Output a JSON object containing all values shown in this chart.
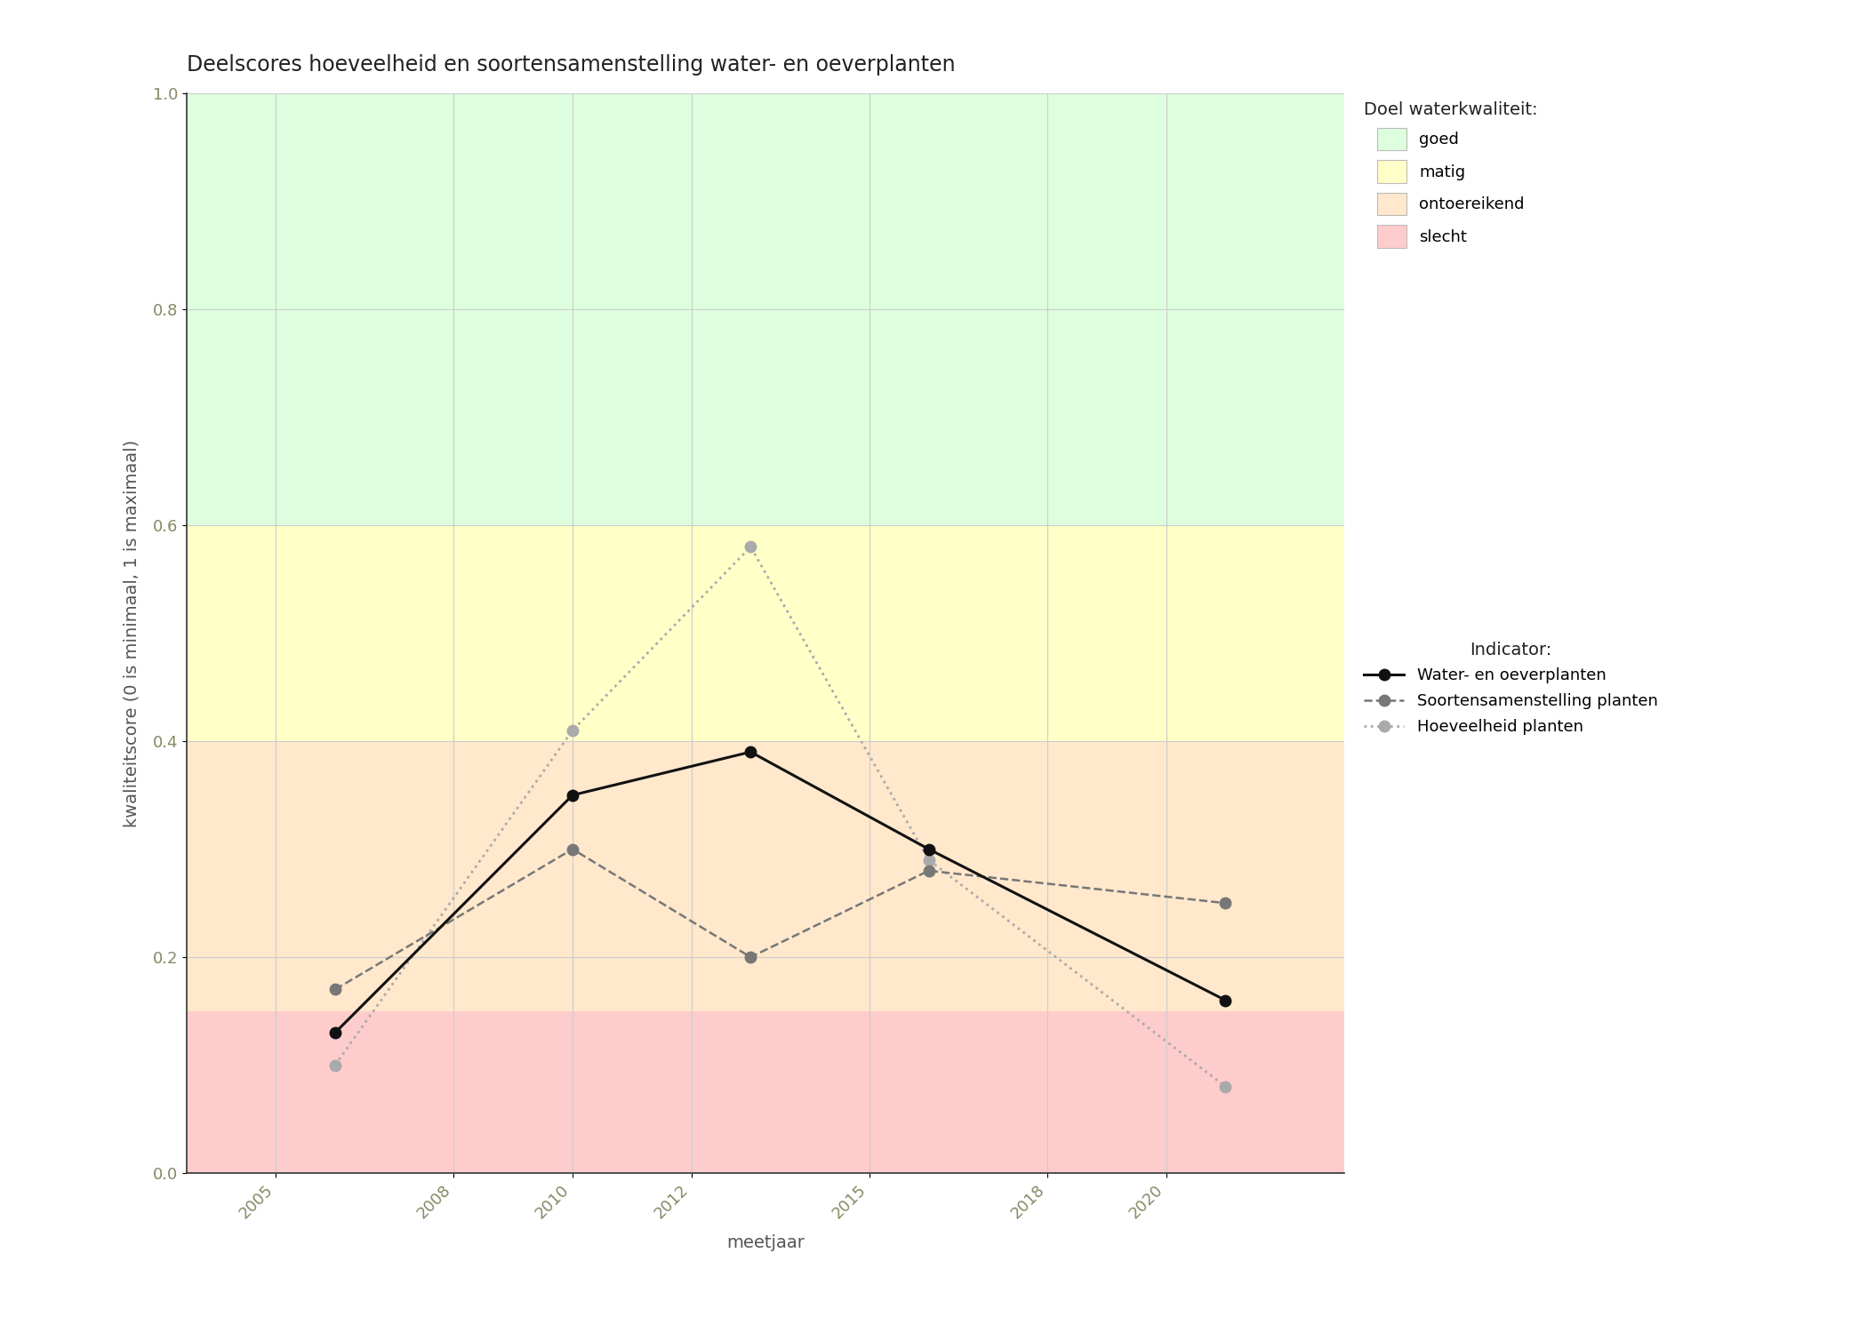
{
  "title": "Deelscores hoeveelheid en soortensamenstelling water- en oeverplanten",
  "xlabel": "meetjaar",
  "ylabel": "kwaliteitscore (0 is minimaal, 1 is maximaal)",
  "ylim": [
    0.0,
    1.0
  ],
  "xlim": [
    2003.5,
    2023.0
  ],
  "xticks": [
    2005,
    2008,
    2010,
    2012,
    2015,
    2018,
    2020
  ],
  "yticks": [
    0.0,
    0.2,
    0.4,
    0.6,
    0.8,
    1.0
  ],
  "bg_bands": [
    {
      "ymin": 0.0,
      "ymax": 0.15,
      "color": "#FFCCCC",
      "label": "slecht"
    },
    {
      "ymin": 0.15,
      "ymax": 0.4,
      "color": "#FFE8CC",
      "label": "ontoereikend"
    },
    {
      "ymin": 0.4,
      "ymax": 0.6,
      "color": "#FFFFC8",
      "label": "matig"
    },
    {
      "ymin": 0.6,
      "ymax": 1.0,
      "color": "#DDFFDD",
      "label": "goed"
    }
  ],
  "series": [
    {
      "name": "Water- en oeverplanten",
      "x": [
        2006,
        2010,
        2013,
        2016,
        2021
      ],
      "y": [
        0.13,
        0.35,
        0.39,
        0.3,
        0.16
      ],
      "color": "#111111",
      "linestyle": "solid",
      "linewidth": 2.2,
      "markersize": 9,
      "marker": "o",
      "zorder": 5
    },
    {
      "name": "Soortensamenstelling planten",
      "x": [
        2006,
        2010,
        2013,
        2016,
        2021
      ],
      "y": [
        0.17,
        0.3,
        0.2,
        0.28,
        0.25
      ],
      "color": "#777777",
      "linestyle": "dashed",
      "linewidth": 1.8,
      "markersize": 9,
      "marker": "o",
      "zorder": 4
    },
    {
      "name": "Hoeveelheid planten",
      "x": [
        2006,
        2010,
        2013,
        2016,
        2021
      ],
      "y": [
        0.1,
        0.41,
        0.58,
        0.29,
        0.08
      ],
      "color": "#aaaaaa",
      "linestyle": "dotted",
      "linewidth": 2.0,
      "markersize": 9,
      "marker": "o",
      "zorder": 3
    }
  ],
  "legend_title_doel": "Doel waterkwaliteit:",
  "legend_title_indicator": "Indicator:",
  "bg_color": "#ffffff",
  "grid_color": "#cccccc",
  "title_fontsize": 17,
  "label_fontsize": 14,
  "tick_fontsize": 13,
  "legend_fontsize": 13
}
